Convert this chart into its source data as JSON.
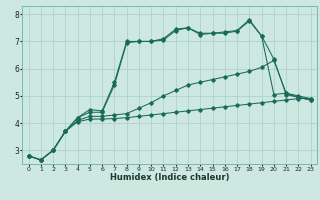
{
  "xlabel": "Humidex (Indice chaleur)",
  "background_color": "#cce8e0",
  "grid_color": "#aacccc",
  "line_color": "#1a6a5a",
  "xlim": [
    -0.5,
    23.5
  ],
  "ylim": [
    2.5,
    8.3
  ],
  "xticks": [
    0,
    1,
    2,
    3,
    4,
    5,
    6,
    7,
    8,
    9,
    10,
    11,
    12,
    13,
    14,
    15,
    16,
    17,
    18,
    19,
    20,
    21,
    22,
    23
  ],
  "yticks": [
    3,
    4,
    5,
    6,
    7,
    8
  ],
  "lines": [
    {
      "x": [
        0,
        1,
        2,
        3,
        4,
        5,
        6,
        7,
        8,
        9,
        10,
        11,
        12,
        13,
        14,
        15,
        16,
        17,
        18,
        19,
        20,
        21,
        22,
        23
      ],
      "y": [
        2.8,
        2.65,
        3.0,
        3.7,
        4.2,
        4.5,
        4.45,
        5.5,
        7.0,
        7.0,
        7.0,
        7.1,
        7.45,
        7.5,
        7.3,
        7.3,
        7.35,
        7.4,
        7.8,
        7.2,
        5.05,
        5.1,
        5.0,
        4.9
      ]
    },
    {
      "x": [
        0,
        1,
        2,
        3,
        4,
        5,
        6,
        7,
        8,
        9,
        10,
        11,
        12,
        13,
        14,
        15,
        16,
        17,
        18,
        19,
        20,
        21,
        22,
        23
      ],
      "y": [
        2.8,
        2.65,
        3.0,
        3.7,
        4.2,
        4.4,
        4.4,
        5.4,
        6.95,
        7.0,
        7.0,
        7.05,
        7.4,
        7.5,
        7.25,
        7.3,
        7.3,
        7.38,
        7.75,
        7.2,
        6.35,
        5.05,
        4.95,
        4.85
      ]
    },
    {
      "x": [
        0,
        1,
        2,
        3,
        4,
        5,
        6,
        7,
        8,
        9,
        10,
        11,
        12,
        13,
        14,
        15,
        16,
        17,
        18,
        19,
        20,
        21,
        22,
        23
      ],
      "y": [
        2.8,
        2.65,
        3.0,
        3.7,
        4.1,
        4.25,
        4.25,
        4.3,
        4.35,
        4.55,
        4.75,
        5.0,
        5.2,
        5.4,
        5.5,
        5.6,
        5.7,
        5.8,
        5.9,
        6.05,
        6.3,
        5.1,
        4.95,
        4.85
      ]
    },
    {
      "x": [
        0,
        1,
        2,
        3,
        4,
        5,
        6,
        7,
        8,
        9,
        10,
        11,
        12,
        13,
        14,
        15,
        16,
        17,
        18,
        19,
        20,
        21,
        22,
        23
      ],
      "y": [
        2.8,
        2.65,
        3.0,
        3.7,
        4.05,
        4.15,
        4.15,
        4.17,
        4.2,
        4.25,
        4.3,
        4.35,
        4.4,
        4.45,
        4.5,
        4.55,
        4.6,
        4.65,
        4.7,
        4.75,
        4.8,
        4.85,
        4.9,
        4.9
      ]
    }
  ]
}
